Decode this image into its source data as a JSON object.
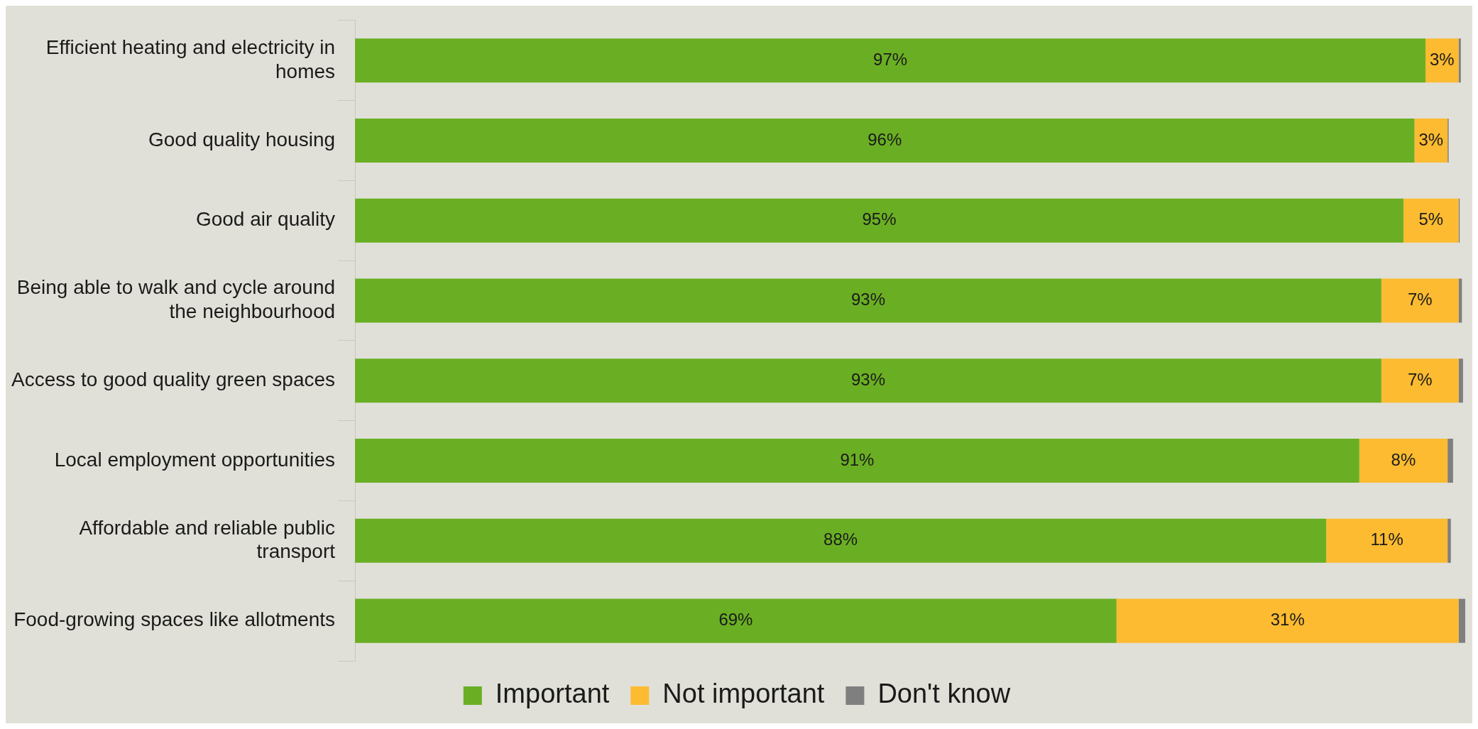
{
  "chart_data": {
    "type": "bar",
    "orientation": "horizontal",
    "stacked": true,
    "legend": "bottom",
    "tick_labels": "y",
    "categories": [
      "Efficient heating and electricity in homes",
      "Good quality housing",
      "Good air quality",
      "Being able to walk and cycle around the neighbourhood",
      "Access to good quality green spaces",
      "Local employment opportunities",
      "Affordable and reliable public transport",
      "Food-growing spaces like allotments"
    ],
    "series": [
      {
        "name": "Important",
        "color": "#6aaf23",
        "values": [
          97,
          96,
          95,
          93,
          93,
          91,
          88,
          69
        ],
        "value_labels": [
          "97%",
          "96%",
          "95%",
          "93%",
          "93%",
          "91%",
          "88%",
          "69%"
        ]
      },
      {
        "name": "Not important",
        "color": "#fcbb30",
        "values": [
          3,
          3,
          5,
          7,
          7,
          8,
          11,
          31
        ],
        "value_labels": [
          "3%",
          "3%",
          "5%",
          "7%",
          "7%",
          "8%",
          "11%",
          "31%"
        ]
      },
      {
        "name": "Don't know",
        "color": "#7f7f7f",
        "values": [
          0.2,
          0.1,
          0.1,
          0.3,
          0.4,
          0.5,
          0.3,
          0.6
        ]
      }
    ]
  }
}
